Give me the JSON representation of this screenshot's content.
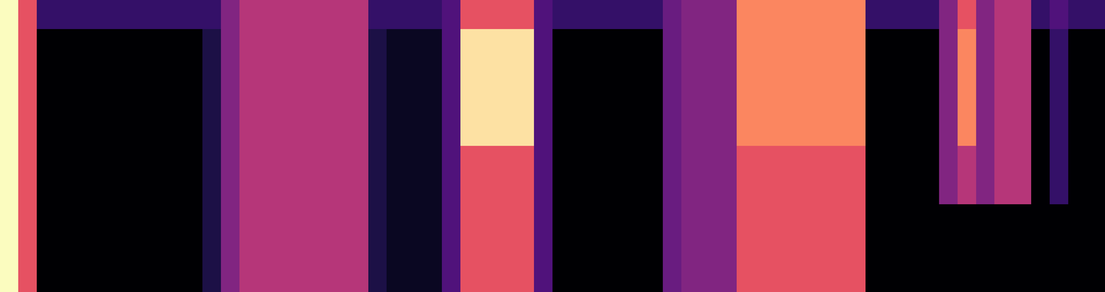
{
  "chart_data": {
    "type": "heatmap",
    "color": "magma",
    "tick_labels": false,
    "cells": [
      [
        0.8,
        0.5,
        0.15,
        0.15,
        0.15,
        0.15,
        0.15,
        0.15,
        0.15,
        0.15,
        0.15,
        0.15,
        0.3,
        0.4,
        0.4,
        0.4,
        0.4,
        0.4,
        0.4,
        0.4,
        0.15,
        0.15,
        0.15,
        0.15,
        0.2,
        0.5,
        0.5,
        0.5,
        0.5,
        0.2,
        0.15,
        0.15,
        0.15,
        0.15,
        0.15,
        0.15,
        0.25,
        0.3,
        0.3,
        0.3,
        0.6,
        0.6,
        0.6,
        0.6,
        0.6,
        0.6,
        0.6,
        0.15,
        0.15,
        0.15,
        0.15,
        0.3,
        0.5,
        0.3,
        0.4,
        0.4,
        0.15,
        0.2,
        0.15,
        0.15
      ],
      [
        0.8,
        0.5,
        0,
        0,
        0,
        0,
        0,
        0,
        0,
        0,
        0,
        0.1,
        0.3,
        0.4,
        0.4,
        0.4,
        0.4,
        0.4,
        0.4,
        0.4,
        0.1,
        0.05,
        0.05,
        0.05,
        0.2,
        0.75,
        0.75,
        0.75,
        0.75,
        0.2,
        0,
        0,
        0,
        0,
        0,
        0,
        0.25,
        0.3,
        0.3,
        0.3,
        0.6,
        0.6,
        0.6,
        0.6,
        0.6,
        0.6,
        0.6,
        0,
        0,
        0,
        0,
        0.3,
        0.6,
        0.3,
        0.4,
        0.4,
        0,
        0.15,
        0,
        0
      ],
      [
        0.8,
        0.5,
        0,
        0,
        0,
        0,
        0,
        0,
        0,
        0,
        0,
        0.1,
        0.3,
        0.4,
        0.4,
        0.4,
        0.4,
        0.4,
        0.4,
        0.4,
        0.1,
        0.05,
        0.05,
        0.05,
        0.2,
        0.75,
        0.75,
        0.75,
        0.75,
        0.2,
        0,
        0,
        0,
        0,
        0,
        0,
        0.25,
        0.3,
        0.3,
        0.3,
        0.6,
        0.6,
        0.6,
        0.6,
        0.6,
        0.6,
        0.6,
        0,
        0,
        0,
        0,
        0.3,
        0.6,
        0.3,
        0.4,
        0.4,
        0,
        0.15,
        0,
        0
      ],
      [
        0.8,
        0.5,
        0,
        0,
        0,
        0,
        0,
        0,
        0,
        0,
        0,
        0.1,
        0.3,
        0.4,
        0.4,
        0.4,
        0.4,
        0.4,
        0.4,
        0.4,
        0.1,
        0.05,
        0.05,
        0.05,
        0.2,
        0.75,
        0.75,
        0.75,
        0.75,
        0.2,
        0,
        0,
        0,
        0,
        0,
        0,
        0.25,
        0.3,
        0.3,
        0.3,
        0.6,
        0.6,
        0.6,
        0.6,
        0.6,
        0.6,
        0.6,
        0,
        0,
        0,
        0,
        0.3,
        0.6,
        0.3,
        0.4,
        0.4,
        0,
        0.15,
        0,
        0
      ],
      [
        0.8,
        0.5,
        0,
        0,
        0,
        0,
        0,
        0,
        0,
        0,
        0,
        0.1,
        0.3,
        0.4,
        0.4,
        0.4,
        0.4,
        0.4,
        0.4,
        0.4,
        0.1,
        0.05,
        0.05,
        0.05,
        0.2,
        0.75,
        0.75,
        0.75,
        0.75,
        0.2,
        0,
        0,
        0,
        0,
        0,
        0,
        0.25,
        0.3,
        0.3,
        0.3,
        0.6,
        0.6,
        0.6,
        0.6,
        0.6,
        0.6,
        0.6,
        0,
        0,
        0,
        0,
        0.3,
        0.6,
        0.3,
        0.4,
        0.4,
        0,
        0.15,
        0,
        0
      ],
      [
        0.8,
        0.5,
        0,
        0,
        0,
        0,
        0,
        0,
        0,
        0,
        0,
        0.1,
        0.3,
        0.4,
        0.4,
        0.4,
        0.4,
        0.4,
        0.4,
        0.4,
        0.1,
        0.05,
        0.05,
        0.05,
        0.2,
        0.5,
        0.5,
        0.5,
        0.5,
        0.2,
        0,
        0,
        0,
        0,
        0,
        0,
        0.25,
        0.3,
        0.3,
        0.3,
        0.5,
        0.5,
        0.5,
        0.5,
        0.5,
        0.5,
        0.5,
        0,
        0,
        0,
        0,
        0.3,
        0.4,
        0.3,
        0.4,
        0.4,
        0,
        0.15,
        0,
        0
      ],
      [
        0.8,
        0.5,
        0,
        0,
        0,
        0,
        0,
        0,
        0,
        0,
        0,
        0.1,
        0.3,
        0.4,
        0.4,
        0.4,
        0.4,
        0.4,
        0.4,
        0.4,
        0.1,
        0.05,
        0.05,
        0.05,
        0.2,
        0.5,
        0.5,
        0.5,
        0.5,
        0.2,
        0,
        0,
        0,
        0,
        0,
        0,
        0.25,
        0.3,
        0.3,
        0.3,
        0.5,
        0.5,
        0.5,
        0.5,
        0.5,
        0.5,
        0.5,
        0,
        0,
        0,
        0,
        0.3,
        0.4,
        0.3,
        0.4,
        0.4,
        0,
        0.15,
        0,
        0
      ],
      [
        0.8,
        0.5,
        0,
        0,
        0,
        0,
        0,
        0,
        0,
        0,
        0,
        0.1,
        0.3,
        0.4,
        0.4,
        0.4,
        0.4,
        0.4,
        0.4,
        0.4,
        0.1,
        0.05,
        0.05,
        0.05,
        0.2,
        0.5,
        0.5,
        0.5,
        0.5,
        0.2,
        0,
        0,
        0,
        0,
        0,
        0,
        0.25,
        0.3,
        0.3,
        0.3,
        0.5,
        0.5,
        0.5,
        0.5,
        0.5,
        0.5,
        0.5,
        0,
        0,
        0,
        0,
        0,
        0,
        0,
        0,
        0,
        0,
        0,
        0,
        0
      ],
      [
        0.8,
        0.5,
        0,
        0,
        0,
        0,
        0,
        0,
        0,
        0,
        0,
        0.1,
        0.3,
        0.4,
        0.4,
        0.4,
        0.4,
        0.4,
        0.4,
        0.4,
        0.1,
        0.05,
        0.05,
        0.05,
        0.2,
        0.5,
        0.5,
        0.5,
        0.5,
        0.2,
        0,
        0,
        0,
        0,
        0,
        0,
        0.25,
        0.3,
        0.3,
        0.3,
        0.5,
        0.5,
        0.5,
        0.5,
        0.5,
        0.5,
        0.5,
        0,
        0,
        0,
        0,
        0,
        0,
        0,
        0,
        0,
        0,
        0,
        0,
        0
      ],
      [
        0.8,
        0.5,
        0,
        0,
        0,
        0,
        0,
        0,
        0,
        0,
        0,
        0.1,
        0.3,
        0.4,
        0.4,
        0.4,
        0.4,
        0.4,
        0.4,
        0.4,
        0.1,
        0.05,
        0.05,
        0.05,
        0.2,
        0.5,
        0.5,
        0.5,
        0.5,
        0.2,
        0,
        0,
        0,
        0,
        0,
        0,
        0.25,
        0.3,
        0.3,
        0.3,
        0.5,
        0.5,
        0.5,
        0.5,
        0.5,
        0.5,
        0.5,
        0,
        0,
        0,
        0,
        0,
        0,
        0,
        0,
        0,
        0,
        0,
        0,
        0
      ]
    ]
  }
}
